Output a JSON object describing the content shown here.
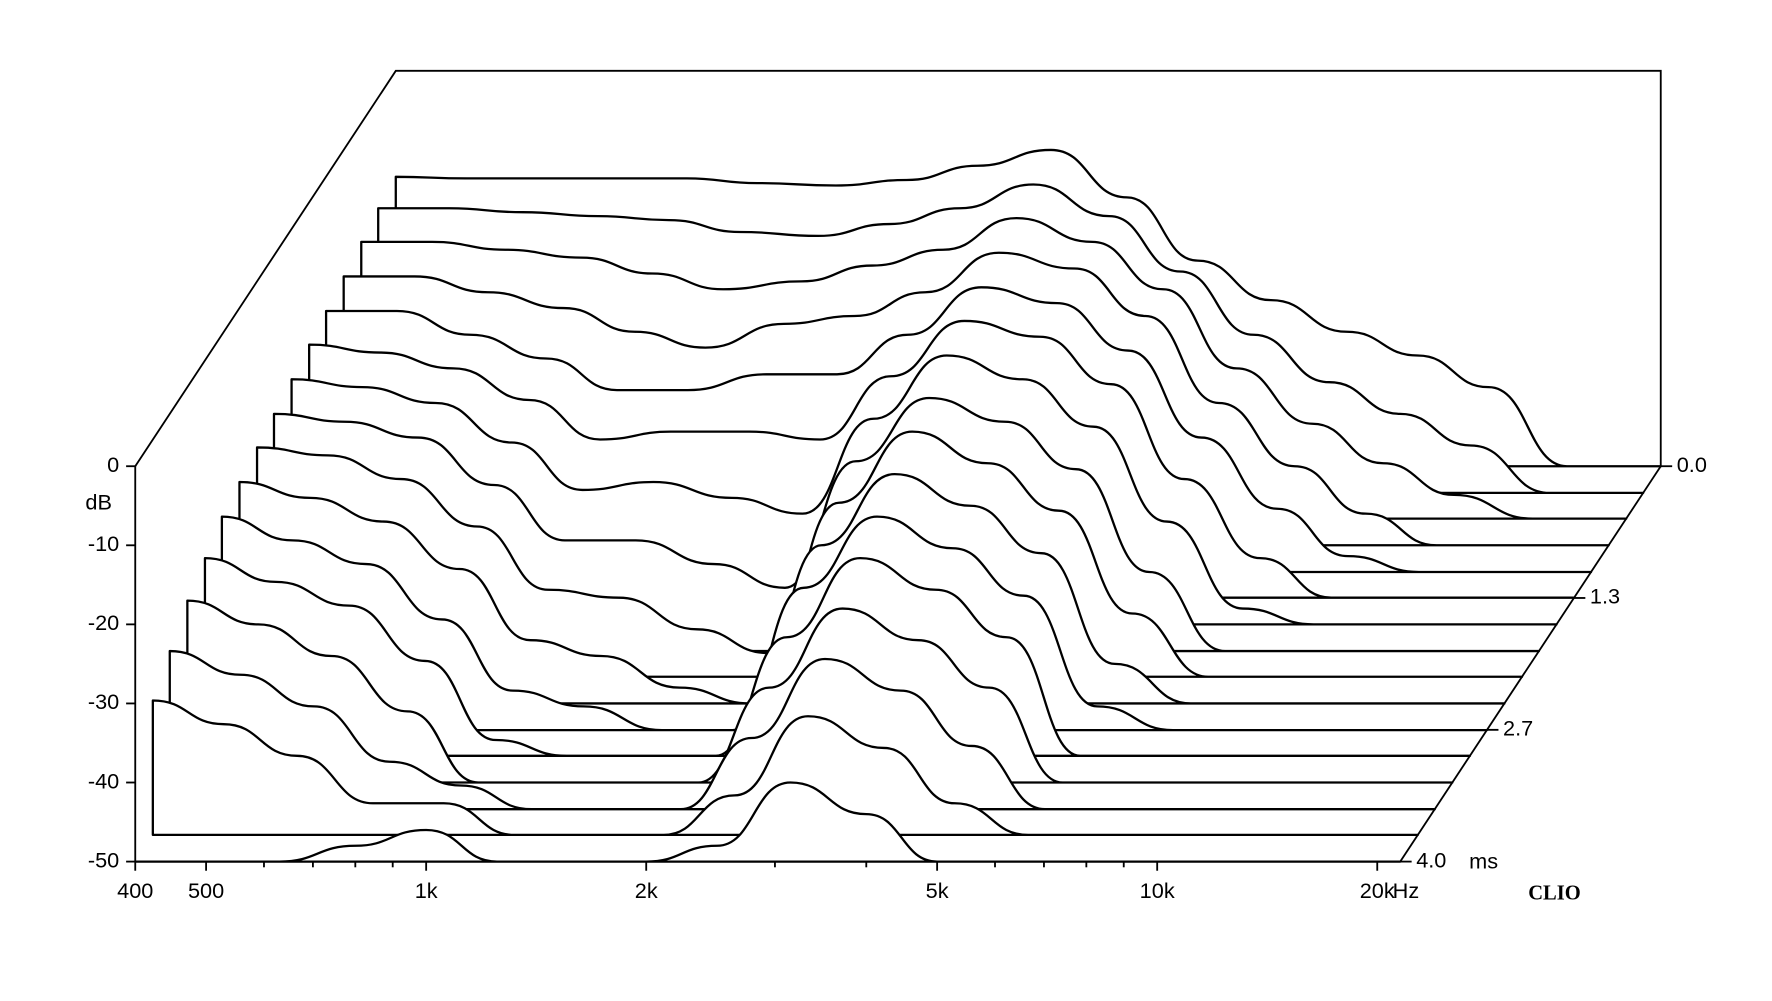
{
  "chart_data": {
    "type": "waterfall",
    "y_label": "dB",
    "x_unit": "Hz",
    "z_unit": "ms",
    "brand": "CLIO",
    "log_x": true,
    "color": "#000000",
    "x": [
      400,
      500,
      630,
      800,
      1000,
      1250,
      1600,
      2000,
      2500,
      3150,
      4000,
      5000,
      6300,
      8000,
      10000,
      12500,
      16000,
      20000
    ],
    "xlim": [
      400,
      21500
    ],
    "xticks": [
      400,
      500,
      {
        "value": 1000,
        "label": "1k"
      },
      {
        "value": 2000,
        "label": "2k"
      },
      {
        "value": 5000,
        "label": "5k"
      },
      {
        "value": 10000,
        "label": "10k"
      },
      {
        "value": 20000,
        "label": "20k"
      }
    ],
    "xminor": [
      600,
      700,
      800,
      900,
      3000,
      4000,
      6000,
      7000,
      8000,
      9000
    ],
    "ylim": [
      -50,
      0
    ],
    "yticks": [
      0,
      -10,
      -20,
      -30,
      -40,
      -50
    ],
    "zlim": [
      0,
      4
    ],
    "zticks": [
      {
        "value": 0,
        "label": "0.0"
      },
      {
        "value": 1.333,
        "label": "1.3"
      },
      {
        "value": 2.667,
        "label": "2.7"
      },
      {
        "value": 4,
        "label": "4.0"
      }
    ],
    "series": [
      {
        "z": 0,
        "values": [
          -13.4,
          -13.6,
          -13.6,
          -13.6,
          -13.6,
          -14.2,
          -14.5,
          -13.8,
          -12,
          -10,
          -16,
          -24,
          -29,
          -33,
          -36,
          -40,
          -50,
          -50
        ]
      },
      {
        "z": 0.27,
        "values": [
          -14,
          -14,
          -14.5,
          -15,
          -15.5,
          -17,
          -17.5,
          -16,
          -14,
          -11,
          -15,
          -22,
          -30,
          -36,
          -40,
          -44,
          -50,
          -50
        ]
      },
      {
        "z": 0.53,
        "values": [
          -15,
          -15,
          -16,
          -17,
          -19,
          -21,
          -20,
          -18,
          -16,
          -12,
          -15,
          -21,
          -31,
          -38,
          -43,
          -47,
          -50,
          -50
        ]
      },
      {
        "z": 0.8,
        "values": [
          -16,
          -16,
          -18,
          -20,
          -23,
          -25,
          -22,
          -21,
          -18,
          -13,
          -15,
          -21,
          -32,
          -40,
          -46,
          -50,
          -50,
          -50
        ]
      },
      {
        "z": 1.07,
        "values": [
          -17,
          -17,
          -20,
          -23,
          -27,
          -27,
          -25,
          -25,
          -20,
          -14,
          -16,
          -22,
          -33,
          -42,
          -48,
          -50,
          -50,
          -50
        ]
      },
      {
        "z": 1.33,
        "values": [
          -18,
          -19,
          -21,
          -25,
          -30,
          -29,
          -29,
          -30,
          -22,
          -15,
          -17,
          -23,
          -35,
          -45,
          -50,
          -50,
          -50,
          -50
        ]
      },
      {
        "z": 1.6,
        "values": [
          -19,
          -20,
          -22,
          -27,
          -33,
          -32,
          -34,
          -36,
          -24,
          -16,
          -19,
          -25,
          -37,
          -48,
          -50,
          -50,
          -50,
          -50
        ]
      },
      {
        "z": 1.87,
        "values": [
          -20,
          -21,
          -23,
          -29,
          -36,
          -36,
          -39,
          -42,
          -26,
          -18,
          -21,
          -27,
          -40,
          -50,
          -50,
          -50,
          -50,
          -50
        ]
      },
      {
        "z": 2.13,
        "values": [
          -21,
          -22,
          -25,
          -31,
          -39,
          -40,
          -44,
          -47,
          -28,
          -19,
          -23,
          -29,
          -42,
          -50,
          -50,
          -50,
          -50,
          -50
        ]
      },
      {
        "z": 2.4,
        "values": [
          -22,
          -24,
          -27,
          -33,
          -42,
          -44,
          -48,
          -50,
          -30,
          -21,
          -25,
          -31,
          -45,
          -50,
          -50,
          -50,
          -50,
          -50
        ]
      },
      {
        "z": 2.67,
        "values": [
          -23,
          -26,
          -29,
          -36,
          -45,
          -47,
          -50,
          -50,
          -32,
          -23,
          -27,
          -33,
          -47,
          -50,
          -50,
          -50,
          -50,
          -50
        ]
      },
      {
        "z": 2.93,
        "values": [
          -25,
          -28,
          -31,
          -38,
          -48,
          -50,
          -50,
          -50,
          -35,
          -25,
          -29,
          -35,
          -50,
          -50,
          -50,
          -50,
          -50,
          -50
        ]
      },
      {
        "z": 3.2,
        "values": [
          -27,
          -30,
          -34,
          -41,
          -50,
          -50,
          -50,
          -50,
          -38,
          -28,
          -32,
          -38,
          -50,
          -50,
          -50,
          -50,
          -50,
          -50
        ]
      },
      {
        "z": 3.47,
        "values": [
          -30,
          -33,
          -37,
          -44,
          -47,
          -50,
          -50,
          -50,
          -41,
          -31,
          -35,
          -42,
          -50,
          -50,
          -50,
          -50,
          -50,
          -50
        ]
      },
      {
        "z": 3.73,
        "values": [
          -33,
          -36,
          -40,
          -46,
          -46,
          -50,
          -50,
          -50,
          -45,
          -35,
          -39,
          -46,
          -50,
          -50,
          -50,
          -50,
          -50,
          -50
        ]
      },
      {
        "z": 4,
        "values": [
          -50,
          -50,
          -50,
          -48,
          -46,
          -50,
          -50,
          -50,
          -48,
          -40,
          -44,
          -50,
          -50,
          -50,
          -50,
          -50,
          -50,
          -50
        ]
      }
    ]
  }
}
